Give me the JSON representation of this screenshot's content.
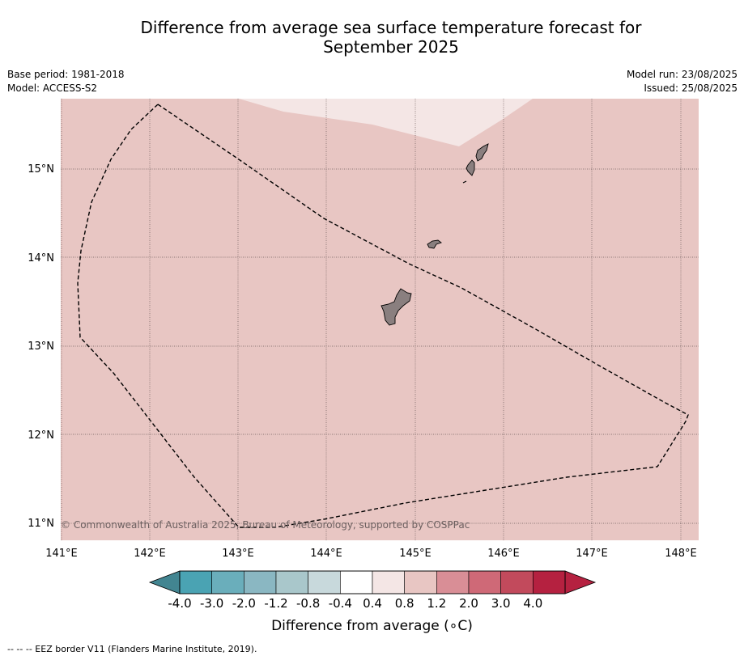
{
  "title": {
    "line1": "Difference from average sea surface temperature forecast for",
    "line2": "September 2025"
  },
  "meta": {
    "base_period": "Base period: 1981-2018",
    "model": "Model: ACCESS-S2",
    "model_run": "Model run: 23/08/2025",
    "issued": "Issued: 25/08/2025"
  },
  "map": {
    "lon_labels": [
      "141°E",
      "142°E",
      "143°E",
      "144°E",
      "145°E",
      "146°E",
      "147°E",
      "148°E"
    ],
    "lat_labels": [
      "11°N",
      "12°N",
      "13°N",
      "14°N",
      "15°N"
    ],
    "lon_range": [
      141,
      148.2
    ],
    "lat_range": [
      10.8,
      15.8
    ],
    "background_anomaly_class": "0.8 to 1.2",
    "northern_patch_anomaly_class": "0.4 to 0.8",
    "copyright": "© Commonwealth of Australia 2025, Bureau of Meteorology, supported by COSPPac"
  },
  "colorbar": {
    "ticks": [
      "-4.0",
      "-3.0",
      "-2.0",
      "-1.2",
      "-0.8",
      "-0.4",
      "0.4",
      "0.8",
      "1.2",
      "2.0",
      "3.0",
      "4.0"
    ],
    "colors": [
      "#4aa3b3",
      "#6aaebb",
      "#8ab7c2",
      "#a9c7cb",
      "#c8d9dc",
      "#ffffff",
      "#f4e6e5",
      "#e8c6c3",
      "#d98e96",
      "#cf6977",
      "#c24a5c",
      "#b52140"
    ],
    "under_color": "#428591",
    "over_color": "#b52140",
    "label": "Difference from average (",
    "label_unit": "∘C)"
  },
  "footnote": "--  --  -- EEZ border V11 (Flanders Marine Institute, 2019)."
}
